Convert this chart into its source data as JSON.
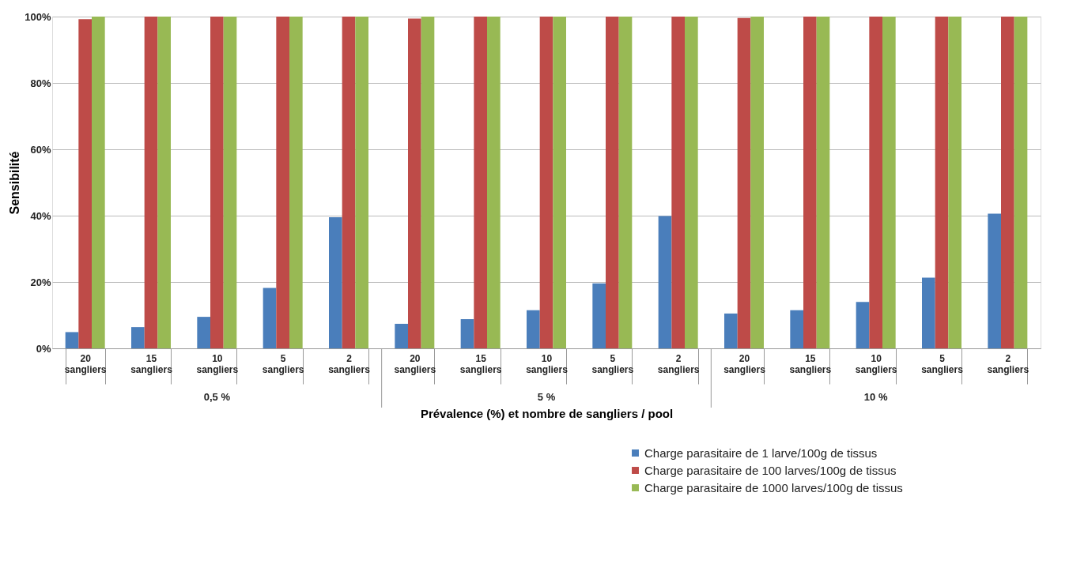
{
  "chart_data": {
    "type": "bar",
    "xlabel": "Prévalence (%) et nombre de sangliers / pool",
    "ylabel": "Sensibilité",
    "categories": [
      "20 sangliers",
      "15 sangliers",
      "10 sangliers",
      "5 sangliers",
      "2 sangliers",
      "20 sangliers",
      "15 sangliers",
      "10 sangliers",
      "5 sangliers",
      "2 sangliers",
      "20 sangliers",
      "15 sangliers",
      "10 sangliers",
      "5 sangliers",
      "2 sangliers"
    ],
    "series": [
      {
        "name": "Charge parasitaire de 1 larve/100g de tissus",
        "color": "#4a7ebb",
        "values": [
          4.9,
          6.4,
          9.5,
          18.2,
          39.5,
          7.4,
          8.8,
          11.5,
          19.6,
          39.9,
          10.5,
          11.5,
          14.0,
          21.3,
          40.6
        ]
      },
      {
        "name": "Charge parasitaire de 100 larves/100g de tissus",
        "color": "#be4b48",
        "values": [
          99.2,
          100,
          100,
          100,
          100,
          99.4,
          100,
          100,
          100,
          100,
          99.6,
          100,
          100,
          100,
          100
        ]
      },
      {
        "name": "Charge parasitaire de 1000 larves/100g de tissus",
        "color": "#98b954",
        "values": [
          100,
          100,
          100,
          100,
          100,
          100,
          100,
          100,
          100,
          100,
          100,
          100,
          100,
          100,
          100
        ]
      }
    ],
    "annotations": [
      "0,5 %",
      "5 %",
      "10 %"
    ],
    "ylim": [
      0,
      100
    ],
    "yticks": [
      {
        "value": 0,
        "label": "0%"
      },
      {
        "value": 20,
        "label": "20%"
      },
      {
        "value": 40,
        "label": "40%"
      },
      {
        "value": 60,
        "label": "60%"
      },
      {
        "value": 80,
        "label": "80%"
      },
      {
        "value": 100,
        "label": "100%"
      }
    ],
    "grid": "y",
    "legend": "bottom right"
  }
}
